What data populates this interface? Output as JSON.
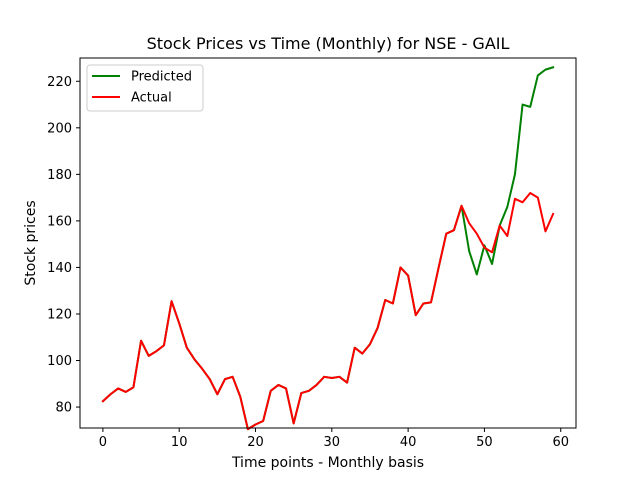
{
  "chart_data": {
    "type": "line",
    "title": "Stock Prices vs Time (Monthly) for NSE - GAIL",
    "xlabel": "Time points - Monthly basis",
    "ylabel": "Stock prices",
    "xlim": [
      -3,
      62
    ],
    "ylim": [
      71,
      230
    ],
    "xticks": [
      0,
      10,
      20,
      30,
      40,
      50,
      60
    ],
    "yticks": [
      80,
      100,
      120,
      140,
      160,
      180,
      200,
      220
    ],
    "grid": false,
    "legend_position": "top-left",
    "x": [
      0,
      1,
      2,
      3,
      4,
      5,
      6,
      7,
      8,
      9,
      10,
      11,
      12,
      13,
      14,
      15,
      16,
      17,
      18,
      19,
      20,
      21,
      22,
      23,
      24,
      25,
      26,
      27,
      28,
      29,
      30,
      31,
      32,
      33,
      34,
      35,
      36,
      37,
      38,
      39,
      40,
      41,
      42,
      43,
      44,
      45,
      46,
      47,
      48,
      49,
      50,
      51,
      52,
      53,
      54,
      55,
      56,
      57,
      58,
      59
    ],
    "series": [
      {
        "name": "Predicted",
        "color": "#008000",
        "values": [
          82.5,
          85.5,
          88,
          86.5,
          88.5,
          108.5,
          102,
          104,
          106.5,
          125.5,
          116,
          105.5,
          100.5,
          96.5,
          92,
          85.5,
          92,
          93,
          84.5,
          70.5,
          72.5,
          74,
          87,
          89.5,
          88,
          73,
          86,
          87,
          89.5,
          93,
          92.5,
          93,
          90.5,
          105.5,
          103,
          107,
          114,
          126,
          124.5,
          140,
          136.5,
          119.5,
          124.5,
          125,
          140,
          154.5,
          156,
          166.5,
          147,
          137,
          149.5,
          141.5,
          158,
          166,
          180,
          210,
          209,
          222.5,
          225,
          226
        ]
      },
      {
        "name": "Actual",
        "color": "#ff0000",
        "values": [
          82.5,
          85.5,
          88,
          86.5,
          88.5,
          108.5,
          102,
          104,
          106.5,
          125.5,
          116,
          105.5,
          100.5,
          96.5,
          92,
          85.5,
          92,
          93,
          84.5,
          70.5,
          72.5,
          74,
          87,
          89.5,
          88,
          73,
          86,
          87,
          89.5,
          93,
          92.5,
          93,
          90.5,
          105.5,
          103,
          107,
          114,
          126,
          124.5,
          140,
          136.5,
          119.5,
          124.5,
          125,
          140,
          154.5,
          156,
          166.5,
          159,
          154.5,
          148.5,
          146.5,
          158,
          153.5,
          169.5,
          168,
          172,
          170,
          155.5,
          163
        ]
      }
    ]
  }
}
